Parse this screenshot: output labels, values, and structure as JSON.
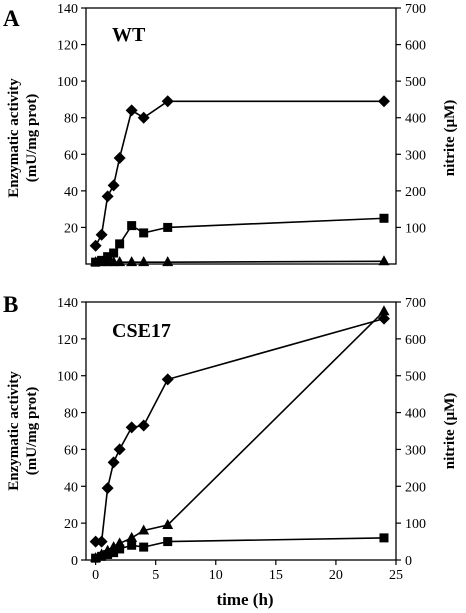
{
  "chart_data": [
    {
      "type": "line",
      "panel": "A",
      "title": "WT",
      "xlabel": "time (h)",
      "ylabel_left": "Enzymatic activity (mU/mg prot)",
      "ylabel_right": "nitrite (µM)",
      "xlim": [
        -0.8,
        25
      ],
      "ylim_left": [
        0,
        140
      ],
      "ylim_right": [
        0,
        700
      ],
      "yticks_left": [
        "20",
        "40",
        "60",
        "80",
        "100",
        "120",
        "140"
      ],
      "yticks_right": [
        "100",
        "200",
        "300",
        "400",
        "500",
        "600",
        "700"
      ],
      "series": [
        {
          "marker": "diamond",
          "axis": "left",
          "x": [
            0,
            0.5,
            1,
            1.5,
            2,
            3,
            4,
            6,
            24
          ],
          "y": [
            10,
            16,
            37,
            43,
            58,
            84,
            80,
            89,
            89
          ]
        },
        {
          "marker": "square",
          "axis": "left",
          "x": [
            0,
            0.5,
            1,
            1.5,
            2,
            3,
            4,
            6,
            24
          ],
          "y": [
            1,
            2,
            4,
            6,
            11,
            21,
            17,
            20,
            25
          ]
        },
        {
          "marker": "triangle",
          "axis": "left",
          "x": [
            0,
            0.5,
            1,
            1.5,
            2,
            3,
            4,
            6,
            24
          ],
          "y": [
            1,
            1,
            1,
            1,
            1,
            1,
            1,
            1,
            1.5
          ]
        }
      ]
    },
    {
      "type": "line",
      "panel": "B",
      "title": "CSE17",
      "xlabel": "time (h)",
      "ylabel_left": "Enzymatic activity (mU/mg prot)",
      "ylabel_right": "nitrite (µM)",
      "xlim": [
        -0.8,
        25
      ],
      "ylim_left": [
        0,
        140
      ],
      "ylim_right": [
        0,
        700
      ],
      "xticks": [
        "0",
        "5",
        "10",
        "15",
        "20",
        "25"
      ],
      "yticks_left": [
        "0",
        "20",
        "40",
        "60",
        "80",
        "100",
        "120",
        "140"
      ],
      "yticks_right": [
        "0",
        "100",
        "200",
        "300",
        "400",
        "500",
        "600",
        "700"
      ],
      "series": [
        {
          "marker": "diamond",
          "axis": "left",
          "x": [
            0,
            0.5,
            1,
            1.5,
            2,
            3,
            4,
            6,
            24
          ],
          "y": [
            10,
            10,
            39,
            53,
            60,
            72,
            73,
            98,
            131
          ]
        },
        {
          "marker": "square",
          "axis": "left",
          "x": [
            0,
            0.5,
            1,
            1.5,
            2,
            3,
            4,
            6,
            24
          ],
          "y": [
            1,
            2,
            3,
            4,
            6,
            8,
            7,
            10,
            12
          ]
        },
        {
          "marker": "triangle",
          "axis": "left",
          "x": [
            0,
            0.5,
            1,
            1.5,
            2,
            3,
            4,
            6,
            24
          ],
          "y": [
            1,
            3,
            5,
            7,
            9,
            12,
            16,
            19,
            135
          ]
        }
      ]
    }
  ]
}
